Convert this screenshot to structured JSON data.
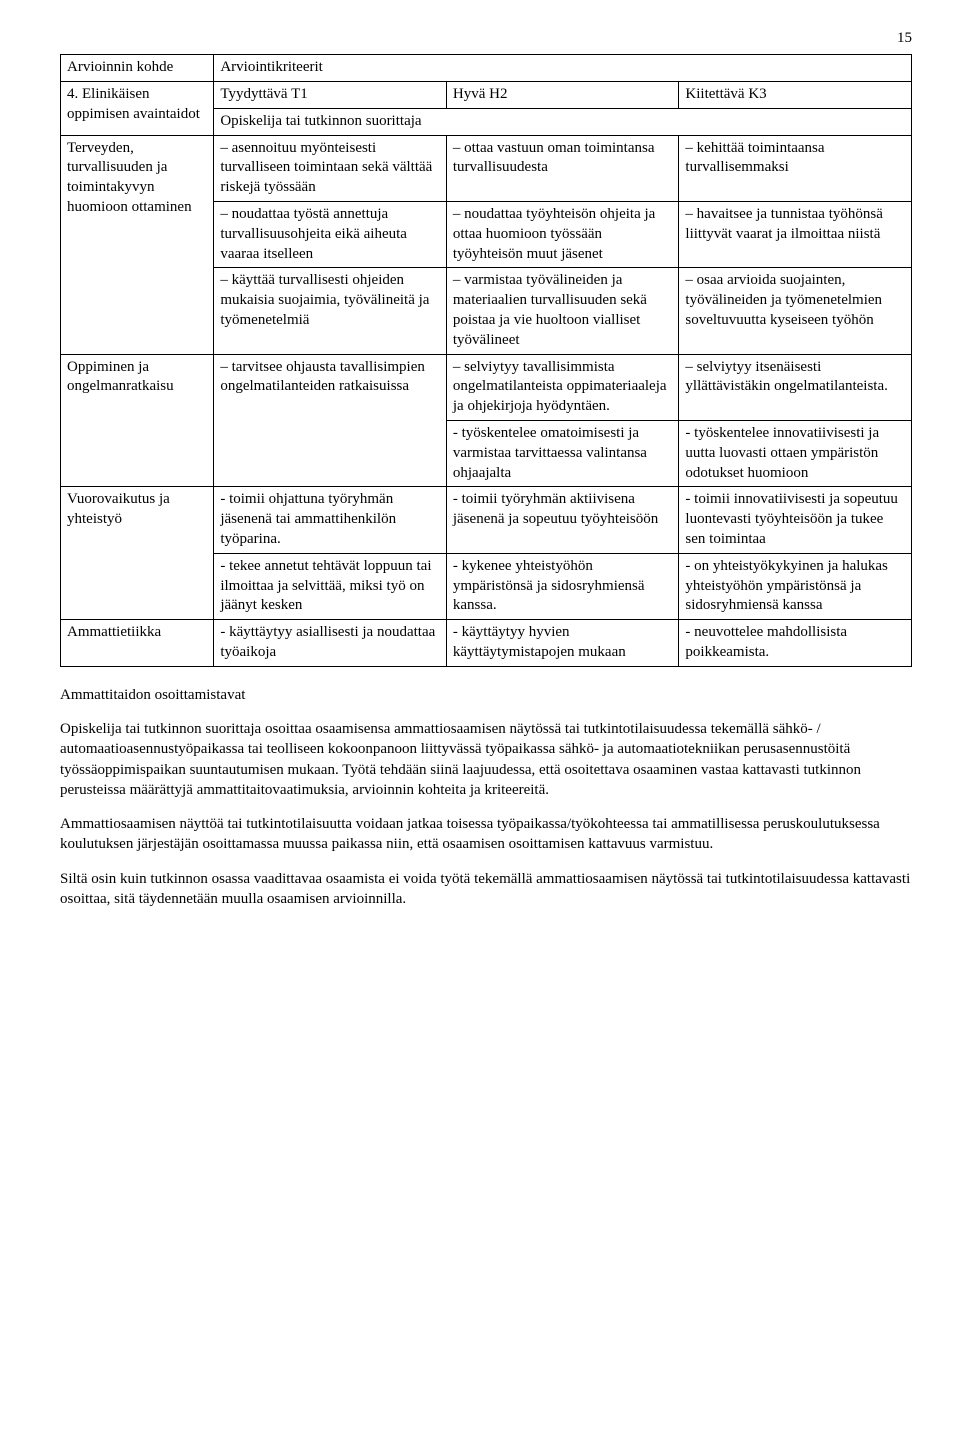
{
  "page_number": "15",
  "table": {
    "head_col1": "Arvioinnin kohde",
    "head_col2": "Arviointikriteerit",
    "row4_label": "4. Elinikäisen oppimisen avaintaidot",
    "level_t": "Tyydyttävä T1",
    "level_h": "Hyvä H2",
    "level_k": "Kiitettävä K3",
    "subtitle": "Opiskelija tai tutkinnon suorittaja",
    "r1_label": "Terveyden, turvallisuuden ja toimintakyvyn huomioon ottaminen",
    "r1a_t": "– asennoituu myönteisesti turvalliseen toimintaan sekä välttää riskejä työssään",
    "r1a_h": "– ottaa vastuun oman toimintansa turvallisuudesta",
    "r1a_k": "– kehittää toimintaansa turvallisemmaksi",
    "r1b_t": "– noudattaa työstä annettuja turvallisuusohjeita eikä aiheuta vaaraa itselleen",
    "r1b_h": "– noudattaa työyhteisön ohjeita ja ottaa huomioon työssään työyhteisön muut jäsenet",
    "r1b_k": "– havaitsee ja tunnistaa työhönsä liittyvät vaarat ja ilmoittaa niistä",
    "r1c_t": "– käyttää turvallisesti ohjeiden mukaisia suojaimia, työvälineitä ja työmenetelmiä",
    "r1c_h": "– varmistaa työvälineiden ja materiaalien turvallisuuden sekä poistaa ja vie huoltoon vialliset työvälineet",
    "r1c_k": "– osaa arvioida suojainten, työvälineiden ja työmenetelmien soveltuvuutta kyseiseen työhön",
    "r2_label": "Oppiminen ja ongelmanratkaisu",
    "r2a_t": "– tarvitsee ohjausta tavallisimpien ongelmatilanteiden ratkaisuissa",
    "r2a_h": "– selviytyy  tavallisimmista ongelmatilanteista oppimateriaaleja ja ohjekirjoja hyödyntäen.",
    "r2a_k": "– selviytyy itsenäisesti yllättävistäkin ongelmatilanteista.",
    "r2b_h": "- työskentelee omatoimisesti ja varmistaa tarvittaessa valintansa ohjaajalta",
    "r2b_k": "- työskentelee innovatiivisesti ja uutta luovasti ottaen ympäristön odotukset huomioon",
    "r3_label": "Vuorovaikutus ja yhteistyö",
    "r3a_t": "- toimii ohjattuna työryhmän jäsenenä tai ammattihenkilön työparina.",
    "r3a_h": "- toimii työryhmän aktiivisena jäsenenä ja sopeutuu työyhteisöön",
    "r3a_k": "- toimii  innovatiivisesti ja sopeutuu luontevasti työyhteisöön ja tukee sen toimintaa",
    "r3b_t": "- tekee annetut tehtävät loppuun tai ilmoittaa ja selvittää, miksi työ on jäänyt kesken",
    "r3b_h": "- kykenee yhteistyöhön ympäristönsä ja sidosryhmiensä kanssa.",
    "r3b_k": "- on yhteistyökykyinen ja halukas yhteistyöhön ympäristönsä ja sidosryhmiensä kanssa",
    "r4_label": "Ammattietiikka",
    "r4a_t": "- käyttäytyy asiallisesti ja noudattaa työaikoja",
    "r4a_h": "- käyttäytyy  hyvien käyttäytymistapojen mukaan",
    "r4a_k": "- neuvottelee mahdollisista poikkeamista."
  },
  "section_title": "Ammattitaidon osoittamistavat",
  "para1": "Opiskelija tai tutkinnon suorittaja osoittaa osaamisensa ammattiosaamisen näytössä tai tutkintotilaisuudessa tekemällä sähkö- / automaatioasennustyöpaikassa tai teolliseen kokoonpanoon liittyvässä työpaikassa sähkö- ja automaatiotekniikan perusasennustöitä työssäoppimispaikan suuntautumisen mukaan. Työtä tehdään siinä laajuudessa, että osoitettava osaaminen vastaa kattavasti tutkinnon perusteissa määrättyjä ammattitaitovaatimuksia, arvioinnin kohteita ja kriteereitä.",
  "para2": "Ammattiosaamisen näyttöä tai tutkintotilaisuutta voidaan jatkaa toisessa työpaikassa/työkohteessa tai ammatillisessa peruskoulutuksessa koulutuksen järjestäjän osoittamassa muussa paikassa niin, että osaamisen osoittamisen kattavuus varmistuu.",
  "para3": "Siltä osin kuin tutkinnon osassa vaadittavaa osaamista ei voida työtä tekemällä ammattiosaamisen näytössä tai tutkintotilaisuudessa kattavasti osoittaa, sitä täydennetään muulla osaamisen arvioinnilla."
}
